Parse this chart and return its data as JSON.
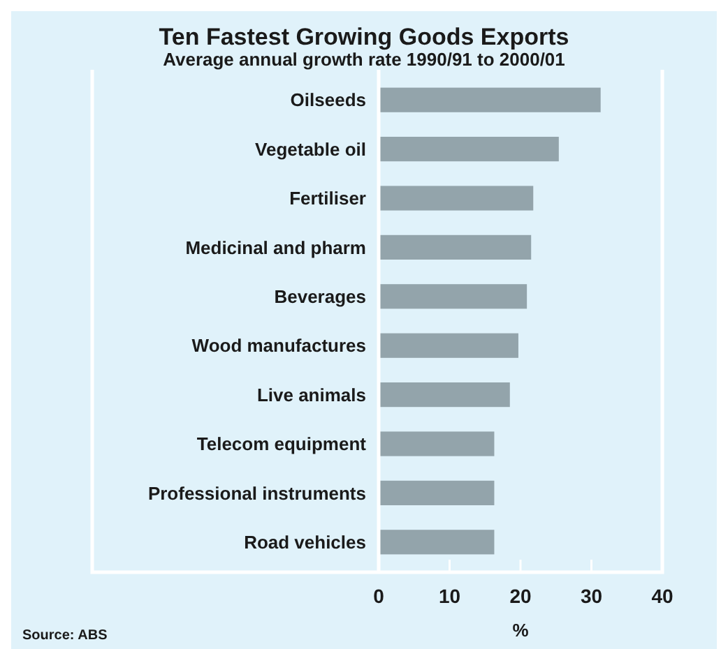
{
  "chart_data": {
    "type": "bar",
    "orientation": "horizontal",
    "title": "Ten Fastest Growing Goods Exports",
    "subtitle": "Average annual growth rate 1990/91 to 2000/01",
    "xlabel": "%",
    "categories": [
      "Oilseeds",
      "Vegetable oil",
      "Fertiliser",
      "Medicinal and pharm",
      "Beverages",
      "Wood manufactures",
      "Live animals",
      "Telecom equipment",
      "Professional instruments",
      "Road vehicles"
    ],
    "values": [
      31.3,
      25.4,
      21.8,
      21.5,
      20.9,
      19.7,
      18.5,
      16.3,
      16.3,
      16.3
    ],
    "color": "#93a4ab",
    "xlim": [
      0,
      40
    ],
    "xticks": [
      0,
      10,
      20,
      30,
      40
    ],
    "grid": false,
    "annotations": [
      "Source: ABS"
    ]
  }
}
